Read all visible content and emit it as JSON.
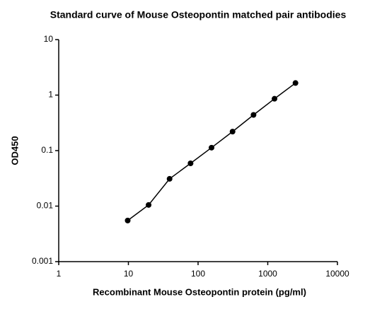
{
  "chart_data": {
    "type": "scatter",
    "title": "Standard curve of Mouse Osteopontin matched pair antibodies",
    "x_label": "Recombinant Mouse Osteopontin protein (pg/ml)",
    "y_label": "OD450",
    "x": [
      9.77,
      19.5,
      39,
      78,
      156,
      312.5,
      625,
      1250,
      2500
    ],
    "series": [
      {
        "color": "#000000",
        "values": [
          0.0055,
          0.0105,
          0.031,
          0.059,
          0.113,
          0.22,
          0.44,
          0.86,
          1.65
        ]
      }
    ],
    "connect": true,
    "xscale": "log",
    "yscale": "log",
    "xlim": [
      1,
      10000
    ],
    "ylim": [
      0.001,
      10
    ],
    "xticks": [
      1,
      10,
      100,
      1000,
      10000
    ],
    "yticks": [
      0.001,
      0.01,
      0.1,
      1,
      10
    ]
  }
}
